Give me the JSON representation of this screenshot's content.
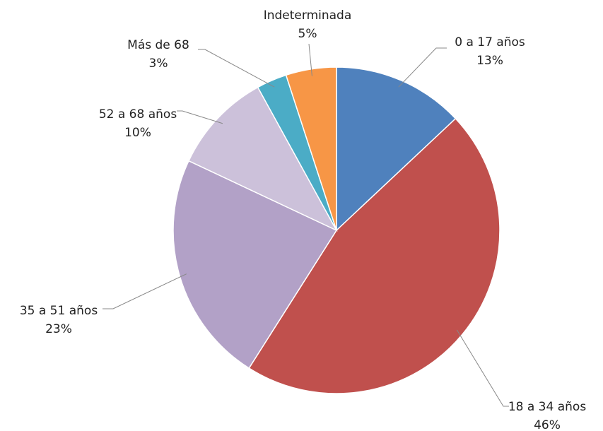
{
  "chart_data": {
    "type": "pie",
    "categories": [
      "0 a 17 años",
      "18 a 34 años",
      "35 a 51 años",
      "52 a 68 años",
      "Más de 68",
      "Indeterminada"
    ],
    "values": [
      13,
      46,
      23,
      10,
      3,
      5
    ],
    "value_labels": [
      "13%",
      "46%",
      "23%",
      "10%",
      "3%",
      "5%"
    ],
    "colors": [
      "#4f81bd",
      "#c0504d",
      "#b2a1c7",
      "#ccc1da",
      "#4bacc6",
      "#f79646"
    ]
  }
}
